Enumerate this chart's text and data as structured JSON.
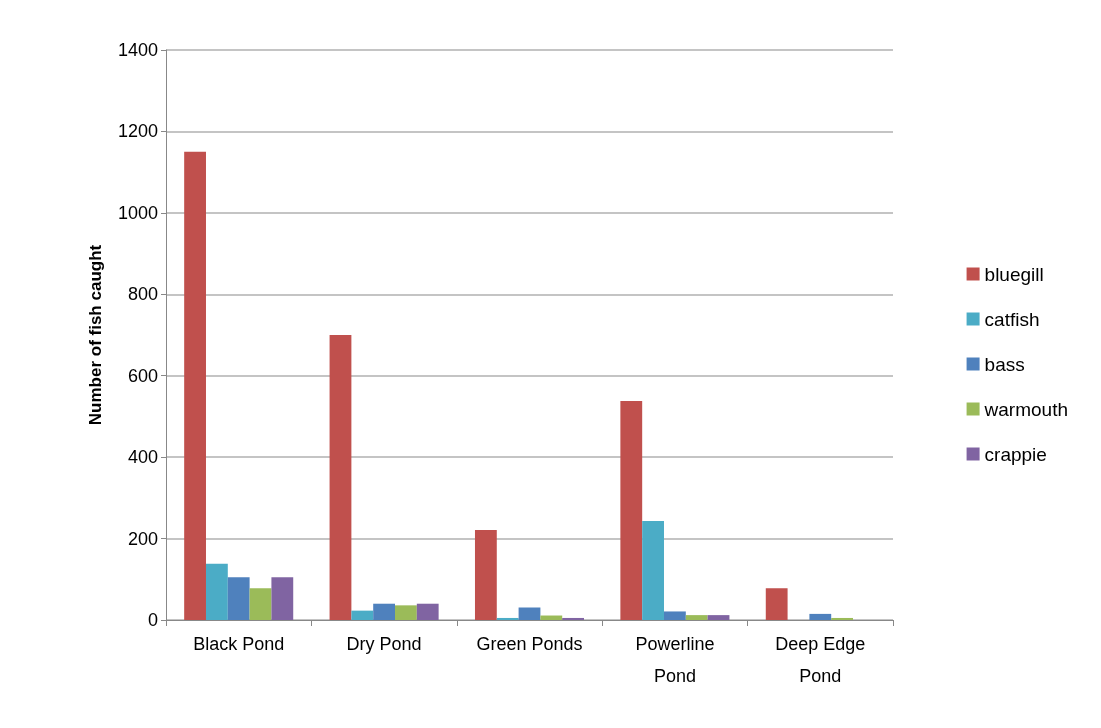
{
  "chart_data": {
    "type": "bar",
    "ylabel": "Number of fish caught",
    "categories": [
      "Black Pond",
      "Dry Pond",
      "Green Ponds",
      "Powerline\nPond",
      "Deep Edge\nPond"
    ],
    "series": [
      {
        "name": "bluegill",
        "color": "#c0504d",
        "values": [
          1150,
          700,
          221,
          538,
          78
        ]
      },
      {
        "name": "catfish",
        "color": "#4bacc6",
        "values": [
          138,
          23,
          5,
          243,
          0
        ]
      },
      {
        "name": "bass",
        "color": "#4f81bd",
        "values": [
          105,
          40,
          31,
          21,
          15
        ]
      },
      {
        "name": "warmouth",
        "color": "#9bbb59",
        "values": [
          78,
          36,
          11,
          12,
          5
        ]
      },
      {
        "name": "crappie",
        "color": "#8064a2",
        "values": [
          105,
          40,
          5,
          12,
          0
        ]
      }
    ],
    "ylim": [
      0,
      1400
    ],
    "yticks": [
      0,
      200,
      400,
      600,
      800,
      1000,
      1200,
      1400
    ],
    "grid": "y",
    "legend": "right"
  }
}
